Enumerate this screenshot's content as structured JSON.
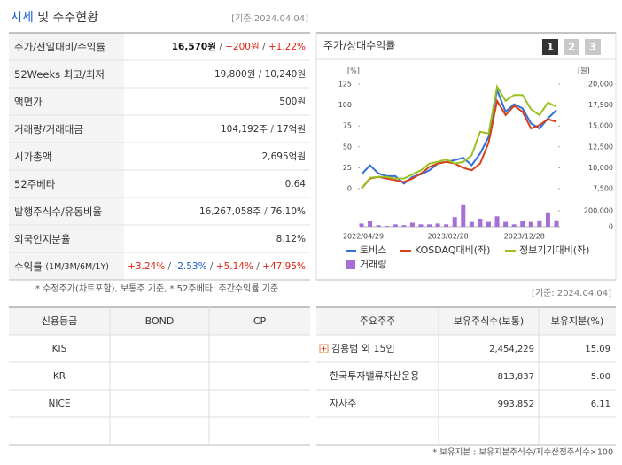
{
  "left_panel": {
    "title_highlight": "시세",
    "title_rest": "및 주주현황",
    "date": "[기준:2024.04.04]",
    "separator": " / ",
    "rows": [
      {
        "label": "주가/전일대비/수익률",
        "parts": [
          "16,570원",
          "+200원",
          "+1.22%"
        ],
        "colors": [
          "#111111",
          "#e0230f",
          "#e0230f"
        ]
      },
      {
        "label": "52Weeks 최고/최저",
        "parts": [
          "19,800원",
          "10,240원"
        ],
        "colors": [
          "#333333",
          "#333333"
        ]
      },
      {
        "label": "액면가",
        "parts": [
          "500원"
        ],
        "colors": [
          "#333333"
        ]
      },
      {
        "label": "거래량/거래대금",
        "parts": [
          "104,192주",
          "17억원"
        ],
        "colors": [
          "#333333",
          "#333333"
        ]
      },
      {
        "label": "시가총액",
        "parts": [
          "2,695억원"
        ],
        "colors": [
          "#333333"
        ]
      },
      {
        "label": "52주베타",
        "parts": [
          "0.64"
        ],
        "colors": [
          "#333333"
        ]
      },
      {
        "label": "발행주식수/유동비율",
        "parts": [
          "16,267,058주",
          "76.10%"
        ],
        "colors": [
          "#333333",
          "#333333"
        ]
      },
      {
        "label": "외국인지분율",
        "parts": [
          "8.12%"
        ],
        "colors": [
          "#333333"
        ]
      },
      {
        "label": "수익률",
        "sublabel": "(1M/3M/6M/1Y)",
        "parts": [
          "+3.24%",
          "-2.53%",
          "+5.14%",
          "+47.95%"
        ],
        "colors": [
          "#e0230f",
          "#1a5fd0",
          "#e0230f",
          "#e0230f"
        ]
      }
    ],
    "footnote": "* 수정주가(차트포함), 보통주 기준, * 52주베타: 주간수익률 기준"
  },
  "chart": {
    "type": "line",
    "title": "주가/상대수익률",
    "buttons": [
      "1",
      "2",
      "3"
    ],
    "y_unit": "[%]",
    "y2_unit": "[원]",
    "categories": [
      "2022/04/29",
      null,
      null,
      null,
      null,
      null,
      null,
      null,
      null,
      null,
      "2023/02/28",
      null,
      null,
      null,
      null,
      null,
      null,
      null,
      null,
      "2023/12/28",
      null,
      null,
      null,
      null
    ],
    "ylim": [
      0,
      125
    ],
    "yticks": [
      0,
      25,
      50,
      75,
      100,
      125
    ],
    "y2lim": [
      7500,
      20000
    ],
    "y2ticks": [
      {
        "value": 7500,
        "label": "7,500"
      },
      {
        "value": 10000,
        "label": "10,000"
      },
      {
        "value": 12500,
        "label": "12,500"
      },
      {
        "value": 15000,
        "label": "15,000"
      },
      {
        "value": 17500,
        "label": "17,500"
      },
      {
        "value": 20000,
        "label": "20,000"
      }
    ],
    "volume_lim": [
      0,
      200000
    ],
    "volume_ticks": [
      0,
      {
        "value": 200000,
        "label": "200,000"
      }
    ],
    "series": [
      {
        "name": "토비스",
        "color": "#2f6fd6",
        "values": [
          17,
          28,
          18,
          15,
          15,
          6,
          14,
          17,
          22,
          30,
          32,
          34,
          37,
          28,
          42,
          62,
          118,
          92,
          101,
          96,
          78,
          72,
          84,
          94
        ]
      },
      {
        "name": "KOSDAQ대비(좌)",
        "color": "#d9401c",
        "values": [
          0,
          12,
          14,
          12,
          10,
          8,
          12,
          18,
          26,
          30,
          32,
          30,
          25,
          22,
          30,
          55,
          105,
          88,
          99,
          92,
          72,
          76,
          83,
          80
        ]
      },
      {
        "name": "정보기기대비(좌)",
        "color": "#9ac21e",
        "values": [
          0,
          13,
          14,
          14,
          12,
          12,
          17,
          22,
          30,
          32,
          35,
          30,
          32,
          40,
          68,
          66,
          122,
          105,
          112,
          112,
          95,
          88,
          103,
          98
        ]
      }
    ],
    "volume": {
      "name": "거래량",
      "color": "#a56fd6",
      "values": [
        40000,
        70000,
        20000,
        10000,
        30000,
        20000,
        50000,
        30000,
        30000,
        40000,
        30000,
        120000,
        280000,
        60000,
        100000,
        60000,
        130000,
        60000,
        30000,
        70000,
        60000,
        80000,
        180000,
        80000
      ]
    }
  },
  "credit": {
    "headers": [
      "신용등급",
      "BOND",
      "CP"
    ],
    "rows": [
      "KIS",
      "KR",
      "NICE"
    ]
  },
  "holders": {
    "date": "[기준: 2024.04.04]",
    "headers": [
      "주요주주",
      "보유주식수(보통)",
      "보유지분(%)"
    ],
    "rows": [
      [
        "김용범 외 15인",
        "2,454,229",
        "15.09"
      ],
      [
        "한국투자밸류자산운용",
        "813,837",
        "5.00"
      ],
      [
        "자사주",
        "993,852",
        "6.11"
      ]
    ],
    "footnote": "* 보유지분 : 보유지분주식수/지수산정주식수×100"
  }
}
